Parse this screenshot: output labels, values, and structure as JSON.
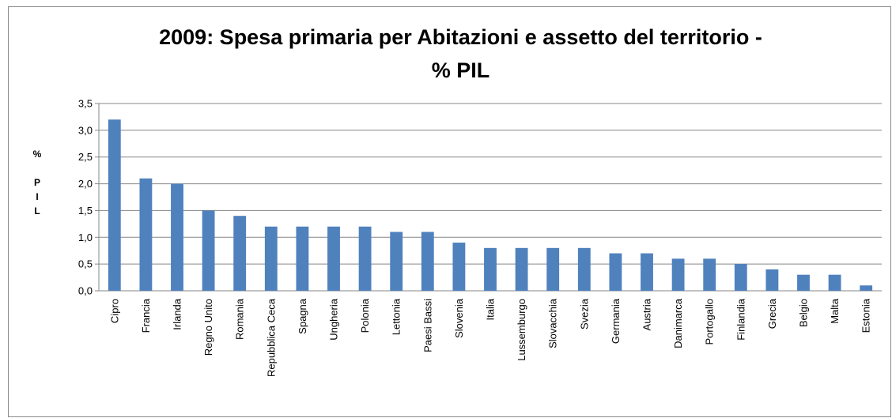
{
  "chart_data": {
    "type": "bar",
    "title": [
      "2009: Spesa primaria per Abitazioni e assetto del territorio -",
      "% PIL"
    ],
    "y_label": "% PIL",
    "categories": [
      "Cipro",
      "Francia",
      "Irlanda",
      "Regno Unito",
      "Romania",
      "Repubblica Ceca",
      "Spagna",
      "Ungheria",
      "Polonia",
      "Lettonia",
      "Paesi Bassi",
      "Slovenia",
      "Italia",
      "Lussemburgo",
      "Slovacchia",
      "Svezia",
      "Germania",
      "Austria",
      "Danimarca",
      "Portogallo",
      "Finlandia",
      "Grecia",
      "Belgio",
      "Malta",
      "Estonia"
    ],
    "values": [
      3.2,
      2.1,
      2.0,
      1.5,
      1.4,
      1.2,
      1.2,
      1.2,
      1.2,
      1.1,
      1.1,
      0.9,
      0.8,
      0.8,
      0.8,
      0.8,
      0.7,
      0.7,
      0.6,
      0.6,
      0.5,
      0.4,
      0.3,
      0.3,
      0.1
    ],
    "color": "#4f81bd",
    "ylim": [
      0,
      3.5
    ],
    "yticks": [
      {
        "value": 0,
        "label": "0,0"
      },
      {
        "value": 0.5,
        "label": "0,5"
      },
      {
        "value": 1,
        "label": "1,0"
      },
      {
        "value": 1.5,
        "label": "1,5"
      },
      {
        "value": 2,
        "label": "2,0"
      },
      {
        "value": 2.5,
        "label": "2,5"
      },
      {
        "value": 3,
        "label": "3,0"
      },
      {
        "value": 3.5,
        "label": "3,5"
      }
    ],
    "grid": true
  }
}
